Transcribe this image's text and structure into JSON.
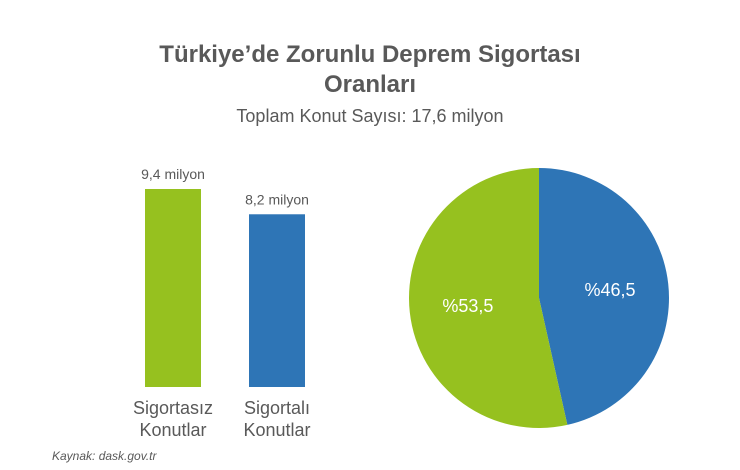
{
  "title_lines": [
    "Türkiye’de Zorunlu Deprem Sigortası",
    "Oranları"
  ],
  "subtitle": "Toplam Konut Sayısı: 17,6 milyon",
  "source": "Kaynak: dask.gov.tr",
  "colors": {
    "green": "#96c11f",
    "blue": "#2e75b6",
    "text": "#595959",
    "white": "#ffffff"
  },
  "chart_data": [
    {
      "type": "bar",
      "categories": [
        [
          "Sigortasız",
          "Konutlar"
        ],
        [
          "Sigortalı",
          "Konutlar"
        ]
      ],
      "values": [
        9.4,
        8.2
      ],
      "data_labels": [
        "9,4 milyon",
        "8,2 milyon"
      ],
      "ylim": [
        0,
        9.4
      ]
    },
    {
      "type": "pie",
      "slices": [
        {
          "label": "%46,5",
          "value": 46.5,
          "color_key": "blue"
        },
        {
          "label": "%53,5",
          "value": 53.5,
          "color_key": "green"
        }
      ],
      "start": "top",
      "direction": "clockwise"
    }
  ]
}
